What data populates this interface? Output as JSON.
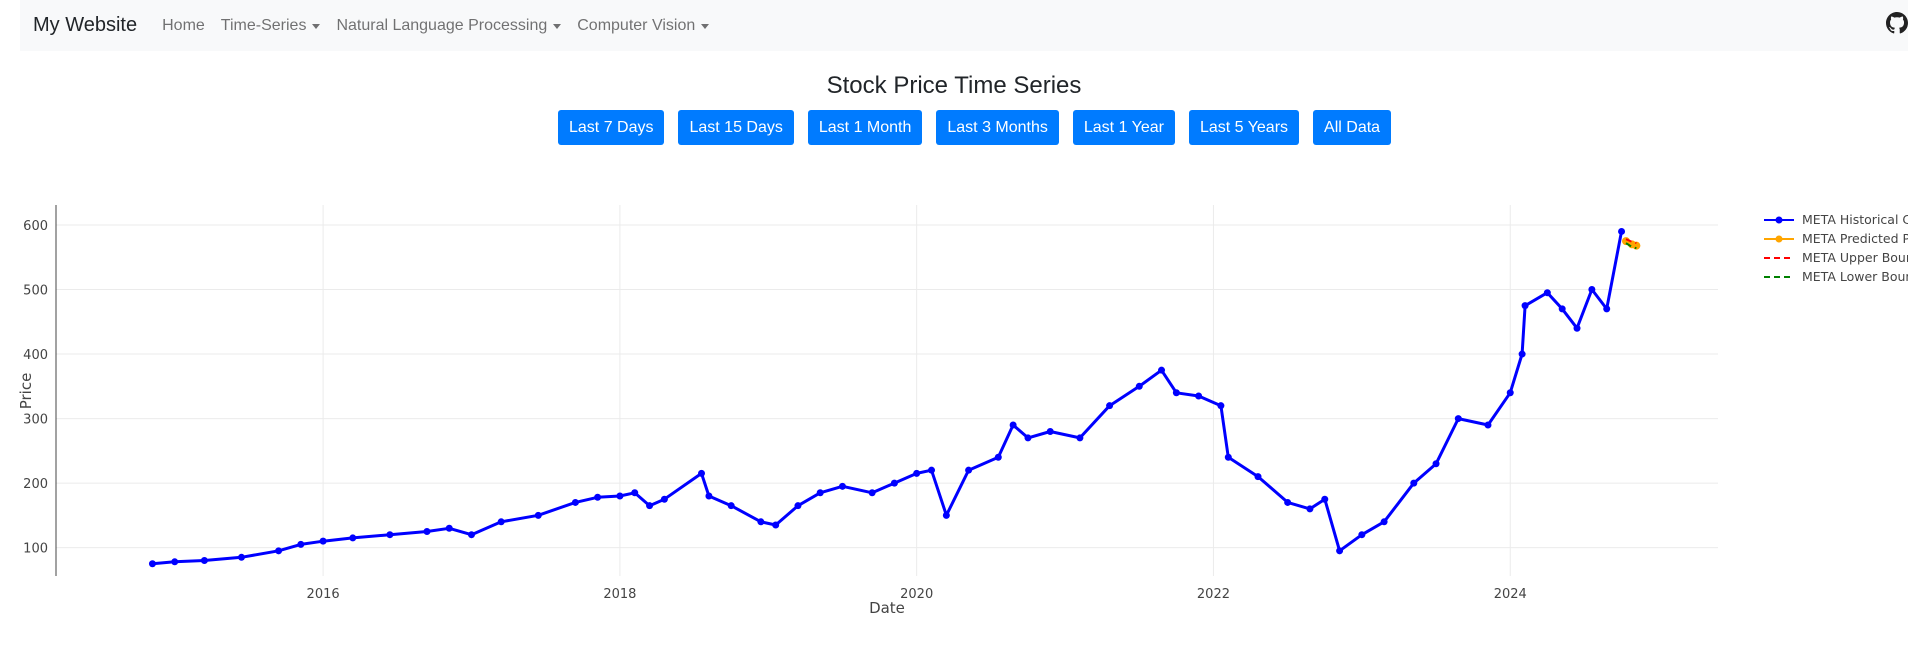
{
  "navbar": {
    "brand": "My Website",
    "items": [
      {
        "label": "Home",
        "dropdown": false
      },
      {
        "label": "Time-Series",
        "dropdown": true
      },
      {
        "label": "Natural Language Processing",
        "dropdown": true
      },
      {
        "label": "Computer Vision",
        "dropdown": true
      }
    ],
    "github_icon": "github-icon"
  },
  "page": {
    "title": "Stock Price Time Series",
    "range_buttons": [
      "Last 7 Days",
      "Last 15 Days",
      "Last 1 Month",
      "Last 3 Months",
      "Last 1 Year",
      "Last 5 Years",
      "All Data"
    ],
    "button_color": "#007bff"
  },
  "chart_data": {
    "type": "line",
    "xlabel": "Date",
    "ylabel": "Price",
    "xlim": [
      2014.2,
      2025.4
    ],
    "ylim": [
      56,
      631
    ],
    "x_ticks": [
      2016,
      2018,
      2020,
      2022,
      2024
    ],
    "y_ticks": [
      100,
      200,
      300,
      400,
      500,
      600
    ],
    "grid": true,
    "legend_position": "top-right",
    "series": [
      {
        "name": "META Historical Close",
        "color": "#0000ff",
        "mode": "lines+markers",
        "x": [
          2014.85,
          2015.0,
          2015.2,
          2015.45,
          2015.7,
          2015.85,
          2016.0,
          2016.2,
          2016.45,
          2016.7,
          2016.85,
          2017.0,
          2017.2,
          2017.45,
          2017.7,
          2017.85,
          2018.0,
          2018.1,
          2018.2,
          2018.3,
          2018.55,
          2018.6,
          2018.75,
          2018.95,
          2019.05,
          2019.2,
          2019.35,
          2019.5,
          2019.7,
          2019.85,
          2020.0,
          2020.1,
          2020.2,
          2020.35,
          2020.55,
          2020.65,
          2020.75,
          2020.9,
          2021.1,
          2021.3,
          2021.5,
          2021.65,
          2021.75,
          2021.9,
          2022.05,
          2022.1,
          2022.3,
          2022.5,
          2022.65,
          2022.75,
          2022.85,
          2023.0,
          2023.15,
          2023.35,
          2023.5,
          2023.65,
          2023.85,
          2024.0,
          2024.08,
          2024.1,
          2024.25,
          2024.35,
          2024.45,
          2024.55,
          2024.65,
          2024.75
        ],
        "y": [
          75,
          78,
          80,
          85,
          95,
          105,
          110,
          115,
          120,
          125,
          130,
          120,
          140,
          150,
          170,
          178,
          180,
          185,
          165,
          175,
          215,
          180,
          165,
          140,
          135,
          165,
          185,
          195,
          185,
          200,
          215,
          220,
          150,
          220,
          240,
          290,
          270,
          280,
          270,
          320,
          350,
          375,
          340,
          335,
          320,
          240,
          210,
          170,
          160,
          175,
          95,
          120,
          140,
          200,
          230,
          300,
          290,
          340,
          400,
          475,
          495,
          470,
          440,
          500,
          470,
          590
        ]
      },
      {
        "name": "META Predicted Price",
        "color": "#ffa500",
        "mode": "lines+markers",
        "x": [
          2024.78,
          2024.82,
          2024.85
        ],
        "y": [
          575,
          570,
          568
        ]
      },
      {
        "name": "META Upper Bound",
        "color": "#ff0000",
        "mode": "dash",
        "x": [
          2024.78,
          2024.82,
          2024.85
        ],
        "y": [
          578,
          574,
          572
        ]
      },
      {
        "name": "META Lower Bound",
        "color": "#008000",
        "mode": "dash",
        "x": [
          2024.78,
          2024.82,
          2024.85
        ],
        "y": [
          572,
          566,
          564
        ]
      }
    ]
  }
}
